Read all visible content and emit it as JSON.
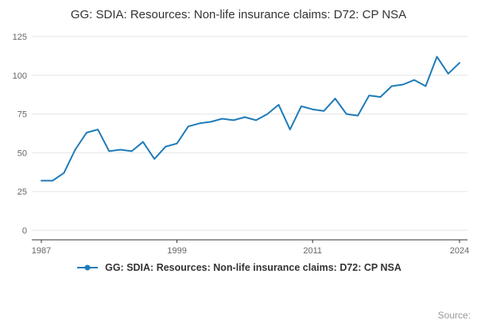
{
  "chart": {
    "title": "GG: SDIA: Resources: Non-life insurance claims: D72: CP NSA",
    "legend_label": "GG: SDIA: Resources: Non-life insurance claims: D72: CP NSA",
    "source_label": "Source:"
  },
  "colors": {
    "line": "#1f7bb8",
    "grid": "#e6e6e6",
    "axis": "#333333",
    "axis_text": "#666666"
  },
  "chart_data": {
    "type": "line",
    "title": "GG: SDIA: Resources: Non-life insurance claims: D72: CP NSA",
    "xlabel": "",
    "ylabel": "",
    "x": [
      1987,
      1988,
      1989,
      1990,
      1991,
      1992,
      1993,
      1994,
      1995,
      1996,
      1997,
      1998,
      1999,
      2000,
      2001,
      2002,
      2003,
      2004,
      2005,
      2006,
      2007,
      2008,
      2009,
      2010,
      2011,
      2012,
      2013,
      2014,
      2015,
      2016,
      2017,
      2018,
      2019,
      2020,
      2021,
      2022,
      2023,
      2024
    ],
    "values": [
      32,
      32,
      37,
      52,
      63,
      65,
      51,
      52,
      51,
      57,
      46,
      54,
      56,
      67,
      69,
      70,
      72,
      71,
      73,
      71,
      75,
      81,
      65,
      80,
      78,
      77,
      85,
      75,
      74,
      87,
      86,
      93,
      94,
      97,
      93,
      112,
      101,
      108
    ],
    "ylim": [
      0,
      125
    ],
    "yticks": [
      0,
      25,
      50,
      75,
      100,
      125
    ],
    "xticks": [
      1987,
      1999,
      2011,
      2024
    ],
    "grid": "horizontal",
    "legend_position": "bottom"
  }
}
